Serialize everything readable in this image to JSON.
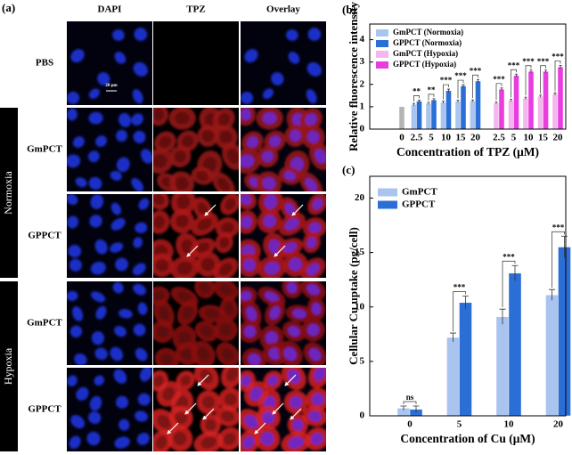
{
  "figure_a": {
    "label": "(a)",
    "columns": [
      "DAPI",
      "TPZ",
      "Overlay"
    ],
    "rows": [
      "PBS",
      "GmPCT",
      "GPPCT",
      "GmPCT",
      "GPPCT"
    ],
    "groups": [
      "Normoxia",
      "Hypoxia"
    ],
    "scale_bar": "20 μm"
  },
  "chart_data": [
    {
      "type": "bar",
      "label": "(b)",
      "ylabel": "Relative fluorescence intensity",
      "xlabel": "Concentration of TPZ (μM)",
      "categories": [
        "0",
        "2.5",
        "5",
        "10",
        "15",
        "20",
        "2.5",
        "5",
        "10",
        "15",
        "20"
      ],
      "ylim": [
        0,
        4.7
      ],
      "yticks": [
        0,
        1,
        2,
        3,
        4
      ],
      "series": [
        {
          "color": "#b4b4b4",
          "values": [
            1.0,
            null,
            null,
            null,
            null,
            null,
            null,
            null,
            null,
            null,
            null
          ]
        },
        {
          "name": "GmPCT (Normoxia)",
          "color": "#a9c4ee",
          "values": [
            null,
            1.1,
            1.15,
            1.2,
            1.25,
            1.27,
            null,
            null,
            null,
            null,
            null
          ],
          "errors": [
            null,
            0.05,
            0.05,
            0.05,
            0.05,
            0.04,
            null,
            null,
            null,
            null,
            null
          ]
        },
        {
          "name": "GPPCT (Normoxia)",
          "color": "#2b6fd6",
          "values": [
            null,
            1.25,
            1.3,
            1.72,
            1.93,
            2.15,
            null,
            null,
            null,
            null,
            null
          ],
          "errors": [
            null,
            0.05,
            0.06,
            0.07,
            0.06,
            0.07,
            null,
            null,
            null,
            null,
            null
          ]
        },
        {
          "name": "GmPCT (Hypoxia)",
          "color": "#f3b6ee",
          "values": [
            null,
            null,
            null,
            null,
            null,
            null,
            1.17,
            1.28,
            1.38,
            1.47,
            1.57
          ],
          "errors": [
            null,
            null,
            null,
            null,
            null,
            null,
            0.05,
            0.05,
            0.05,
            0.05,
            0.05
          ]
        },
        {
          "name": "GPPCT (Hypoxia)",
          "color": "#e83ee0",
          "values": [
            null,
            null,
            null,
            null,
            null,
            null,
            1.78,
            2.4,
            2.58,
            2.58,
            2.78
          ],
          "errors": [
            null,
            null,
            null,
            null,
            null,
            null,
            0.06,
            0.06,
            0.06,
            0.06,
            0.07
          ]
        }
      ],
      "significance": [
        null,
        "**",
        "**",
        "***",
        "***",
        "***",
        "***",
        "***",
        "***",
        "***",
        "***"
      ]
    },
    {
      "type": "bar",
      "label": "(c)",
      "ylabel": "Cellular Cu uptake (pg/cell)",
      "xlabel": "Concentration of Cu (μM)",
      "categories": [
        "0",
        "5",
        "10",
        "20"
      ],
      "ylim": [
        0,
        22
      ],
      "yticks": [
        0,
        5,
        10,
        15,
        20
      ],
      "series": [
        {
          "name": "GmPCT",
          "color": "#a9c4ee",
          "values": [
            0.7,
            7.2,
            9.1,
            11.1
          ],
          "errors": [
            0.2,
            0.4,
            0.7,
            0.5
          ]
        },
        {
          "name": "GPPCT",
          "color": "#2b6fd6",
          "values": [
            0.6,
            10.4,
            13.1,
            15.5
          ],
          "errors": [
            0.3,
            0.6,
            0.7,
            1.0
          ]
        }
      ],
      "significance": [
        "ns",
        "***",
        "***",
        "***"
      ]
    }
  ]
}
